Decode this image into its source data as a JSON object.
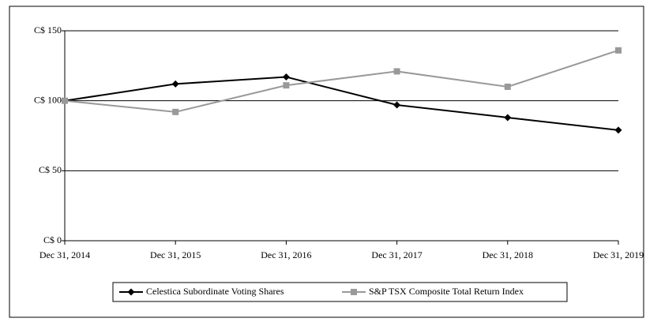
{
  "chart_data": {
    "type": "line",
    "categories": [
      "Dec 31, 2014",
      "Dec 31, 2015",
      "Dec 31, 2016",
      "Dec 31, 2017",
      "Dec 31, 2018",
      "Dec 31, 2019"
    ],
    "series": [
      {
        "name": "Celestica Subordinate Voting Shares",
        "color": "#000000",
        "marker": "diamond",
        "values": [
          100,
          112,
          117,
          97,
          88,
          79
        ]
      },
      {
        "name": "S&P TSX Composite Total Return Index",
        "color": "#999999",
        "marker": "square",
        "values": [
          100,
          92,
          111,
          121,
          110,
          136
        ]
      }
    ],
    "ylim": [
      0,
      150
    ],
    "yticks": [
      {
        "value": 0,
        "label": "C$ 0"
      },
      {
        "value": 50,
        "label": "C$ 50"
      },
      {
        "value": 100,
        "label": "C$ 100"
      },
      {
        "value": 150,
        "label": "C$ 150"
      }
    ],
    "grid": true,
    "legend": "bottom"
  }
}
